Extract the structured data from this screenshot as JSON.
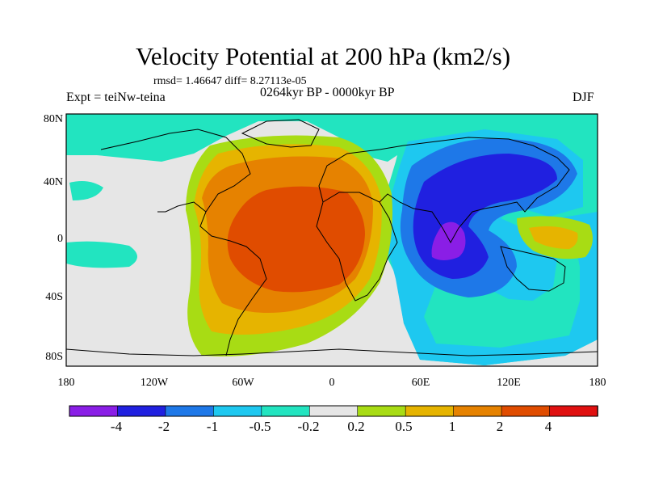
{
  "title": "Velocity Potential at 200 hPa (km2/s)",
  "stats_line": "rmsd= 1.46647 diff= 8.27113e-05",
  "experiment": "Expt = teiNw-teina",
  "period": "0264kyr BP - 0000kyr BP",
  "season": "DJF",
  "lat_ticks": [
    "80N",
    "40N",
    "0",
    "40S",
    "80S"
  ],
  "lon_ticks": [
    "180",
    "120W",
    "60W",
    "0",
    "60E",
    "120E",
    "180"
  ],
  "colorbar": {
    "colors": [
      "#8a1ee6",
      "#2020e0",
      "#1e78e8",
      "#1ec8f0",
      "#22e4c0",
      "#e6e6e6",
      "#a8dc14",
      "#e6b400",
      "#e68200",
      "#e04c00",
      "#e01010"
    ],
    "labels": [
      "-4",
      "-2",
      "-1",
      "-0.5",
      "-0.2",
      "0.2",
      "0.5",
      "1",
      "2",
      "4"
    ]
  },
  "map_colors": {
    "ocean_bg": "#e6e6e6",
    "lv_neg02": "#22e4c0",
    "lv_neg05": "#1ec8f0",
    "lv_neg1": "#1e78e8",
    "lv_neg2": "#2020e0",
    "lv_neg4": "#8a1ee6",
    "lv_pos02": "#a8dc14",
    "lv_pos05": "#e6b400",
    "lv_pos1": "#e68200",
    "lv_pos2": "#e04c00"
  }
}
